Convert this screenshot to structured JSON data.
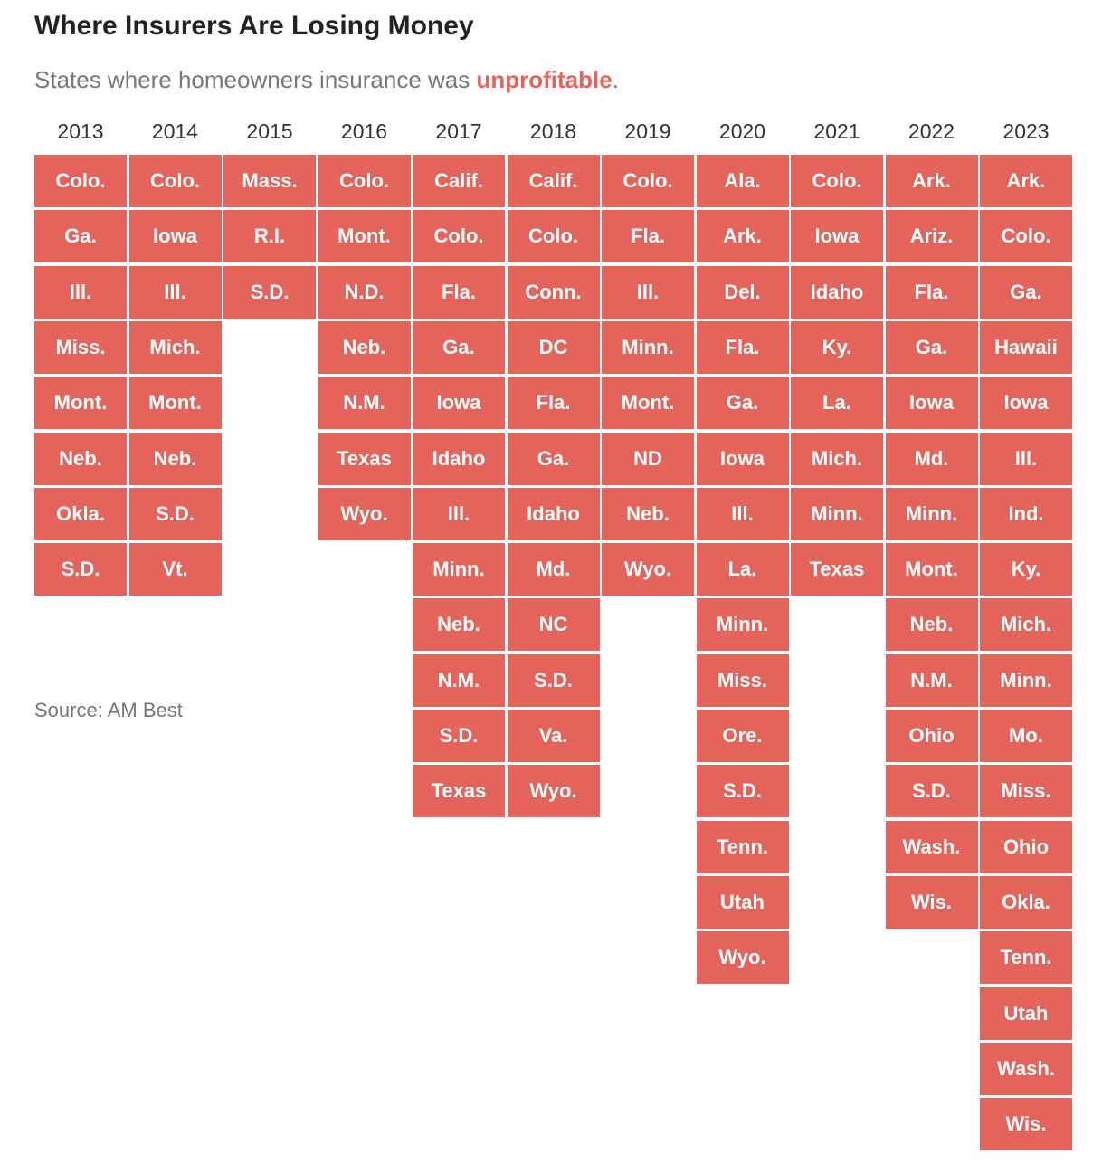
{
  "title": "Where Insurers Are Losing Money",
  "subtitle": {
    "before": "States where homeowners insurance was ",
    "highlight": "unprofitable",
    "after": "."
  },
  "columns": [
    {
      "year": "2013",
      "states": [
        "Colo.",
        "Ga.",
        "Ill.",
        "Miss.",
        "Mont.",
        "Neb.",
        "Okla.",
        "S.D."
      ]
    },
    {
      "year": "2014",
      "states": [
        "Colo.",
        "Iowa",
        "Ill.",
        "Mich.",
        "Mont.",
        "Neb.",
        "S.D.",
        "Vt."
      ]
    },
    {
      "year": "2015",
      "states": [
        "Mass.",
        "R.I.",
        "S.D."
      ]
    },
    {
      "year": "2016",
      "states": [
        "Colo.",
        "Mont.",
        "N.D.",
        "Neb.",
        "N.M.",
        "Texas",
        "Wyo."
      ]
    },
    {
      "year": "2017",
      "states": [
        "Calif.",
        "Colo.",
        "Fla.",
        "Ga.",
        "Iowa",
        "Idaho",
        "Ill.",
        "Minn.",
        "Neb.",
        "N.M.",
        "S.D.",
        "Texas"
      ]
    },
    {
      "year": "2018",
      "states": [
        "Calif.",
        "Colo.",
        "Conn.",
        "DC",
        "Fla.",
        "Ga.",
        "Idaho",
        "Md.",
        "NC",
        "S.D.",
        "Va.",
        "Wyo."
      ]
    },
    {
      "year": "2019",
      "states": [
        "Colo.",
        "Fla.",
        "Ill.",
        "Minn.",
        "Mont.",
        "ND",
        "Neb.",
        "Wyo."
      ]
    },
    {
      "year": "2020",
      "states": [
        "Ala.",
        "Ark.",
        "Del.",
        "Fla.",
        "Ga.",
        "Iowa",
        "Ill.",
        "La.",
        "Minn.",
        "Miss.",
        "Ore.",
        "S.D.",
        "Tenn.",
        "Utah",
        "Wyo."
      ]
    },
    {
      "year": "2021",
      "states": [
        "Colo.",
        "Iowa",
        "Idaho",
        "Ky.",
        "La.",
        "Mich.",
        "Minn.",
        "Texas"
      ]
    },
    {
      "year": "2022",
      "states": [
        "Ark.",
        "Ariz.",
        "Fla.",
        "Ga.",
        "Iowa",
        "Md.",
        "Minn.",
        "Mont.",
        "Neb.",
        "N.M.",
        "Ohio",
        "S.D.",
        "Wash.",
        "Wis."
      ]
    },
    {
      "year": "2023",
      "states": [
        "Ark.",
        "Colo.",
        "Ga.",
        "Hawaii",
        "Iowa",
        "Ill.",
        "Ind.",
        "Ky.",
        "Mich.",
        "Minn.",
        "Mo.",
        "Miss.",
        "Ohio",
        "Okla.",
        "Tenn.",
        "Utah",
        "Wash.",
        "Wis."
      ]
    }
  ],
  "source": "Source: AM Best"
}
